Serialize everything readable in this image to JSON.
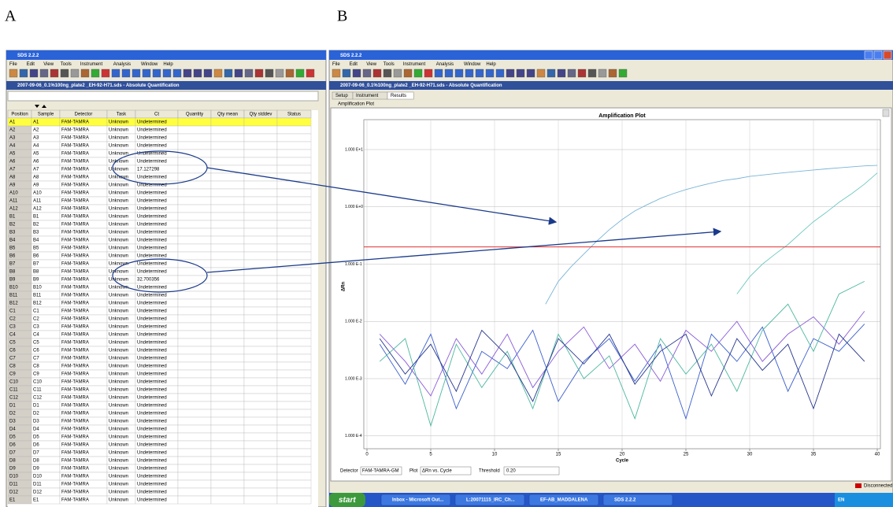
{
  "labels": {
    "a": "A",
    "b": "B"
  },
  "left_window": {
    "title": "SDS 2.2.2",
    "menu": [
      "File",
      "Edit",
      "View",
      "Tools",
      "Instrument",
      "Analysis",
      "Window",
      "Help"
    ],
    "document_title": "2007-09-06_0.1%100ng_plate2 _EH-92-H71.sds - Absolute Quantification",
    "table": {
      "columns": [
        "Position",
        "Sample",
        "Detector",
        "Task",
        "Ct",
        "Quantity",
        "Qty mean",
        "Qty stddev",
        "Status"
      ],
      "rows": [
        [
          "A1",
          "A1",
          "FAM-TAMRA",
          "Unknown",
          "Undetermined"
        ],
        [
          "A2",
          "A2",
          "FAM-TAMRA",
          "Unknown",
          "Undetermined"
        ],
        [
          "A3",
          "A3",
          "FAM-TAMRA",
          "Unknown",
          "Undetermined"
        ],
        [
          "A4",
          "A4",
          "FAM-TAMRA",
          "Unknown",
          "Undetermined"
        ],
        [
          "A5",
          "A5",
          "FAM-TAMRA",
          "Unknown",
          "Undetermined"
        ],
        [
          "A6",
          "A6",
          "FAM-TAMRA",
          "Unknown",
          "Undetermined"
        ],
        [
          "A7",
          "A7",
          "FAM-TAMRA",
          "Unknown",
          "17.127298"
        ],
        [
          "A8",
          "A8",
          "FAM-TAMRA",
          "Unknown",
          "Undetermined"
        ],
        [
          "A9",
          "A9",
          "FAM-TAMRA",
          "Unknown",
          "Undetermined"
        ],
        [
          "A10",
          "A10",
          "FAM-TAMRA",
          "Unknown",
          "Undetermined"
        ],
        [
          "A11",
          "A11",
          "FAM-TAMRA",
          "Unknown",
          "Undetermined"
        ],
        [
          "A12",
          "A12",
          "FAM-TAMRA",
          "Unknown",
          "Undetermined"
        ],
        [
          "B1",
          "B1",
          "FAM-TAMRA",
          "Unknown",
          "Undetermined"
        ],
        [
          "B2",
          "B2",
          "FAM-TAMRA",
          "Unknown",
          "Undetermined"
        ],
        [
          "B3",
          "B3",
          "FAM-TAMRA",
          "Unknown",
          "Undetermined"
        ],
        [
          "B4",
          "B4",
          "FAM-TAMRA",
          "Unknown",
          "Undetermined"
        ],
        [
          "B5",
          "B5",
          "FAM-TAMRA",
          "Unknown",
          "Undetermined"
        ],
        [
          "B6",
          "B6",
          "FAM-TAMRA",
          "Unknown",
          "Undetermined"
        ],
        [
          "B7",
          "B7",
          "FAM-TAMRA",
          "Unknown",
          "Undetermined"
        ],
        [
          "B8",
          "B8",
          "FAM-TAMRA",
          "Unknown",
          "Undetermined"
        ],
        [
          "B9",
          "B9",
          "FAM-TAMRA",
          "Unknown",
          "32.700356"
        ],
        [
          "B10",
          "B10",
          "FAM-TAMRA",
          "Unknown",
          "Undetermined"
        ],
        [
          "B11",
          "B11",
          "FAM-TAMRA",
          "Unknown",
          "Undetermined"
        ],
        [
          "B12",
          "B12",
          "FAM-TAMRA",
          "Unknown",
          "Undetermined"
        ],
        [
          "C1",
          "C1",
          "FAM-TAMRA",
          "Unknown",
          "Undetermined"
        ],
        [
          "C2",
          "C2",
          "FAM-TAMRA",
          "Unknown",
          "Undetermined"
        ],
        [
          "C3",
          "C3",
          "FAM-TAMRA",
          "Unknown",
          "Undetermined"
        ],
        [
          "C4",
          "C4",
          "FAM-TAMRA",
          "Unknown",
          "Undetermined"
        ],
        [
          "C5",
          "C5",
          "FAM-TAMRA",
          "Unknown",
          "Undetermined"
        ],
        [
          "C6",
          "C6",
          "FAM-TAMRA",
          "Unknown",
          "Undetermined"
        ],
        [
          "C7",
          "C7",
          "FAM-TAMRA",
          "Unknown",
          "Undetermined"
        ],
        [
          "C8",
          "C8",
          "FAM-TAMRA",
          "Unknown",
          "Undetermined"
        ],
        [
          "C9",
          "C9",
          "FAM-TAMRA",
          "Unknown",
          "Undetermined"
        ],
        [
          "C10",
          "C10",
          "FAM-TAMRA",
          "Unknown",
          "Undetermined"
        ],
        [
          "C11",
          "C11",
          "FAM-TAMRA",
          "Unknown",
          "Undetermined"
        ],
        [
          "C12",
          "C12",
          "FAM-TAMRA",
          "Unknown",
          "Undetermined"
        ],
        [
          "D1",
          "D1",
          "FAM-TAMRA",
          "Unknown",
          "Undetermined"
        ],
        [
          "D2",
          "D2",
          "FAM-TAMRA",
          "Unknown",
          "Undetermined"
        ],
        [
          "D3",
          "D3",
          "FAM-TAMRA",
          "Unknown",
          "Undetermined"
        ],
        [
          "D4",
          "D4",
          "FAM-TAMRA",
          "Unknown",
          "Undetermined"
        ],
        [
          "D5",
          "D5",
          "FAM-TAMRA",
          "Unknown",
          "Undetermined"
        ],
        [
          "D6",
          "D6",
          "FAM-TAMRA",
          "Unknown",
          "Undetermined"
        ],
        [
          "D7",
          "D7",
          "FAM-TAMRA",
          "Unknown",
          "Undetermined"
        ],
        [
          "D8",
          "D8",
          "FAM-TAMRA",
          "Unknown",
          "Undetermined"
        ],
        [
          "D9",
          "D9",
          "FAM-TAMRA",
          "Unknown",
          "Undetermined"
        ],
        [
          "D10",
          "D10",
          "FAM-TAMRA",
          "Unknown",
          "Undetermined"
        ],
        [
          "D11",
          "D11",
          "FAM-TAMRA",
          "Unknown",
          "Undetermined"
        ],
        [
          "D12",
          "D12",
          "FAM-TAMRA",
          "Unknown",
          "Undetermined"
        ],
        [
          "E1",
          "E1",
          "FAM-TAMRA",
          "Unknown",
          "Undetermined"
        ]
      ]
    }
  },
  "right_window": {
    "title": "SDS 2.2.2",
    "menu": [
      "File",
      "Edit",
      "View",
      "Tools",
      "Instrument",
      "Analysis",
      "Window",
      "Help"
    ],
    "document_title": "2007-09-06_0.1%100ng_plate2 _EH-92-H71.sds - Absolute Quantification",
    "tabs": [
      "Setup",
      "Instrument",
      "Results"
    ],
    "panel_label": "Amplification Plot",
    "chart_data": {
      "type": "line",
      "title": "Amplification Plot",
      "x_label": "Cycle",
      "y_label": "ΔRn",
      "log_y": true,
      "grid": true,
      "xlim": [
        0,
        40
      ],
      "ylim": [
        7e-05,
        10
      ],
      "xticks": [
        0,
        5,
        10,
        15,
        20,
        25,
        30,
        35,
        40
      ],
      "yticks": [
        {
          "value": 10,
          "label": "1.000 E+1"
        },
        {
          "value": 1,
          "label": "1.000 E+0"
        },
        {
          "value": 0.1,
          "label": "1.000 E-1"
        },
        {
          "value": 0.01,
          "label": "1.000 E-2"
        },
        {
          "value": 0.001,
          "label": "1.000 E-3"
        },
        {
          "value": 0.0001,
          "label": "1.000 E-4"
        }
      ],
      "threshold": 0.2,
      "threshold_color": "#e03030",
      "series": [
        {
          "color": "#3a5fcd",
          "x": [
            1,
            3,
            5,
            7,
            9,
            11,
            13,
            15,
            17,
            19,
            21,
            23,
            25,
            27,
            29,
            31,
            33,
            35,
            37,
            39
          ],
          "values": [
            0.004,
            0.0008,
            0.006,
            0.0003,
            0.003,
            0.0015,
            0.007,
            0.0004,
            0.002,
            0.005,
            0.0009,
            0.004,
            0.0002,
            0.006,
            0.002,
            0.008,
            0.0006,
            0.005,
            0.003,
            0.009
          ]
        },
        {
          "color": "#8a5ad8",
          "x": [
            1,
            3,
            5,
            7,
            9,
            11,
            13,
            15,
            17,
            19,
            21,
            23,
            25,
            27,
            29,
            31,
            33,
            35,
            37,
            39
          ],
          "values": [
            0.006,
            0.002,
            0.0005,
            0.005,
            0.0012,
            0.006,
            0.0007,
            0.003,
            0.008,
            0.0015,
            0.004,
            0.0009,
            0.007,
            0.003,
            0.01,
            0.002,
            0.006,
            0.012,
            0.004,
            0.015
          ]
        },
        {
          "color": "#4cb89e",
          "x": [
            1,
            3,
            5,
            7,
            9,
            11,
            13,
            15,
            17,
            19,
            21,
            23,
            25,
            27,
            29,
            31,
            33,
            35,
            37,
            39
          ],
          "values": [
            0.002,
            0.005,
            0.00015,
            0.004,
            0.0007,
            0.003,
            0.0003,
            0.006,
            0.001,
            0.0025,
            0.0002,
            0.005,
            0.0012,
            0.004,
            0.0006,
            0.007,
            0.02,
            0.003,
            0.03,
            0.05
          ]
        },
        {
          "color": "#23348c",
          "x": [
            1,
            3,
            5,
            7,
            9,
            11,
            13,
            15,
            17,
            19,
            21,
            23,
            25,
            27,
            29,
            31,
            33,
            35,
            37,
            39
          ],
          "values": [
            0.005,
            0.0012,
            0.004,
            0.0006,
            0.007,
            0.0025,
            0.0004,
            0.005,
            0.0018,
            0.006,
            0.0008,
            0.003,
            0.006,
            0.0005,
            0.005,
            0.0014,
            0.004,
            0.0003,
            0.006,
            0.002
          ]
        },
        {
          "color": "#7ab4d6",
          "x": [
            14,
            15,
            16,
            17,
            18,
            19,
            20,
            21,
            22,
            23,
            24,
            25,
            26,
            27,
            28,
            29,
            30,
            31,
            32,
            33,
            34,
            35,
            36,
            37,
            38,
            39,
            40
          ],
          "values": [
            0.02,
            0.05,
            0.09,
            0.15,
            0.25,
            0.4,
            0.6,
            0.85,
            1.1,
            1.4,
            1.7,
            2.0,
            2.3,
            2.6,
            2.9,
            3.1,
            3.4,
            3.6,
            3.8,
            4.0,
            4.2,
            4.4,
            4.6,
            4.8,
            5.0,
            5.2,
            5.3
          ]
        },
        {
          "color": "#6cc8c0",
          "x": [
            29,
            30,
            31,
            32,
            33,
            34,
            35,
            36,
            37,
            38,
            39,
            40
          ],
          "values": [
            0.03,
            0.06,
            0.1,
            0.15,
            0.22,
            0.35,
            0.55,
            0.8,
            1.2,
            1.7,
            2.5,
            3.9
          ]
        }
      ]
    },
    "controls": {
      "detector_label": "Detector",
      "detector_value": "FAM-TAMRA-GM",
      "plot_label": "Plot",
      "plot_value": "ΔRn vs. Cycle",
      "threshold_label": "Threshold",
      "threshold_value": "0.20"
    },
    "status": "Disconnected"
  },
  "taskbar": {
    "start": "start",
    "items": [
      "Inbox - Microsoft Out...",
      "L:20071115_IRC_Ch...",
      "EF-AB_MADDALENA",
      "SDS 2.2.2"
    ],
    "language": "EN"
  }
}
